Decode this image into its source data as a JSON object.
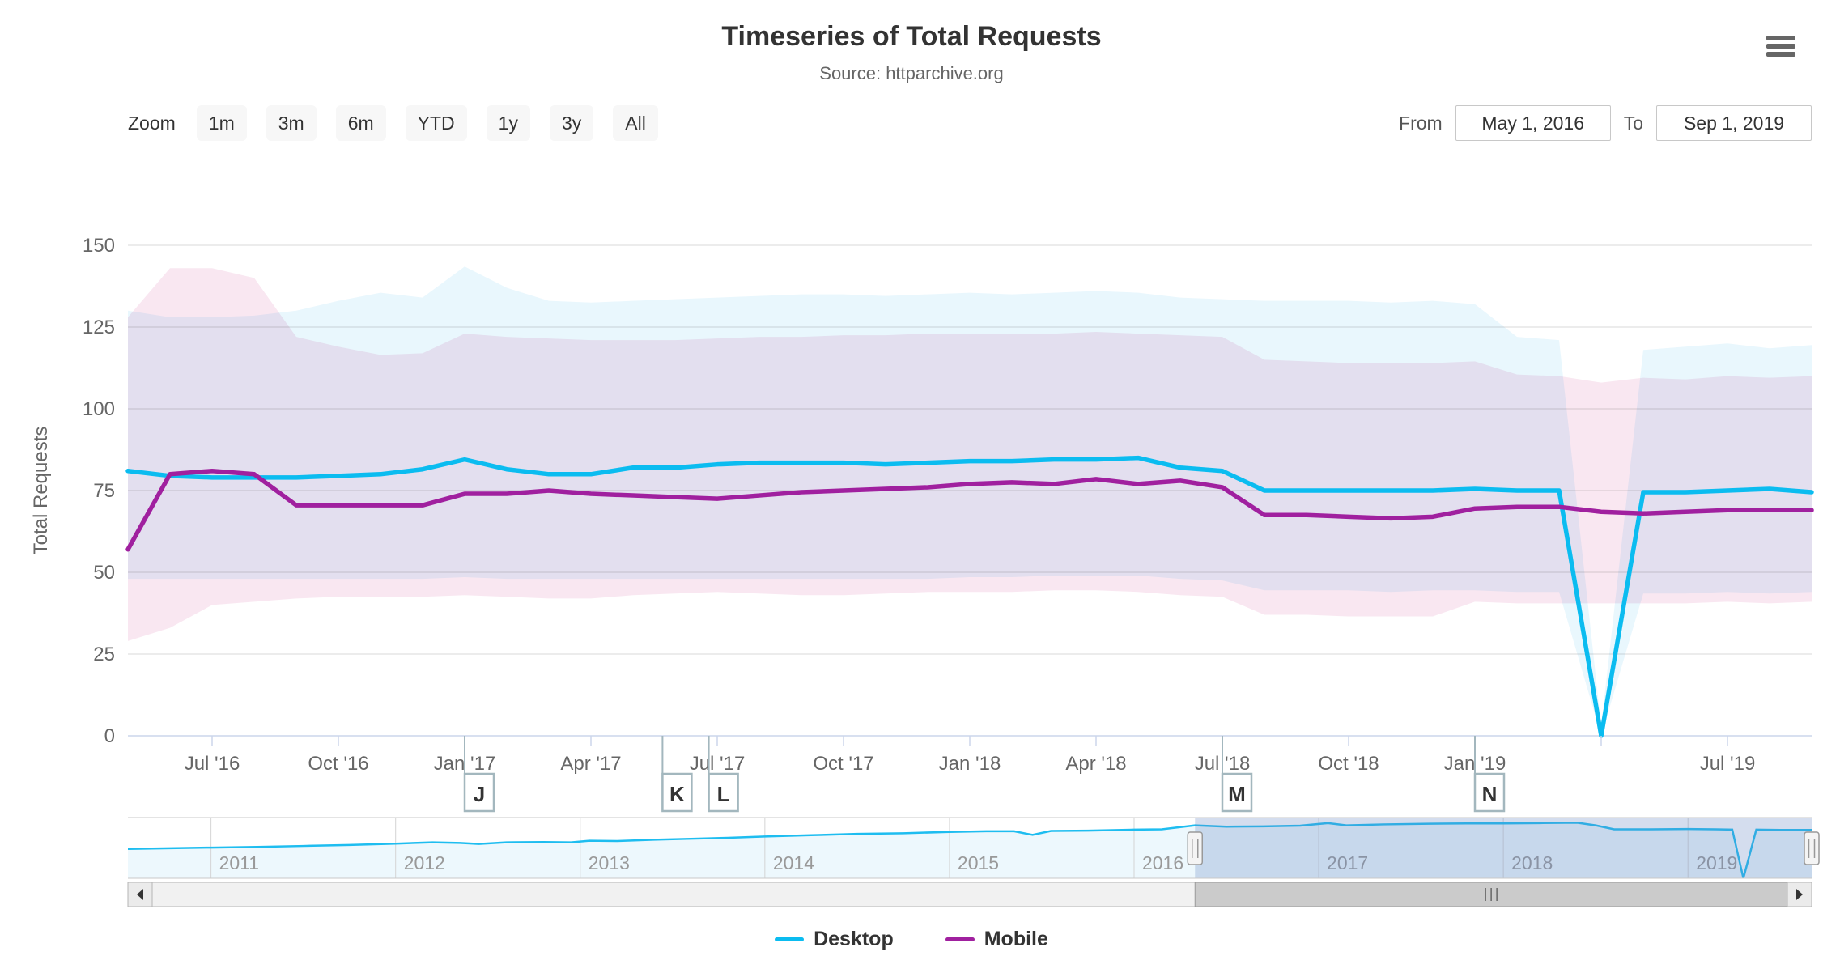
{
  "header": {
    "menu_icon": "hamburger-icon"
  },
  "toolbar": {
    "zoom_label": "Zoom",
    "buttons": [
      "1m",
      "3m",
      "6m",
      "YTD",
      "1y",
      "3y",
      "All"
    ],
    "from_label": "From",
    "from_value": "May 1, 2016",
    "to_label": "To",
    "to_value": "Sep 1, 2019"
  },
  "chart_data": {
    "type": "line",
    "title": "Timeseries of Total Requests",
    "subtitle": "Source: httparchive.org",
    "ylabel": "Total Requests",
    "ylim": [
      0,
      150
    ],
    "yticks": [
      0,
      25,
      50,
      75,
      100,
      125,
      150
    ],
    "grid": "horizontal",
    "legend_position": "bottom",
    "months": [
      "2016-05",
      "2016-06",
      "2016-07",
      "2016-08",
      "2016-09",
      "2016-10",
      "2016-11",
      "2016-12",
      "2017-01",
      "2017-02",
      "2017-03",
      "2017-04",
      "2017-05",
      "2017-06",
      "2017-07",
      "2017-08",
      "2017-09",
      "2017-10",
      "2017-11",
      "2017-12",
      "2018-01",
      "2018-02",
      "2018-03",
      "2018-04",
      "2018-05",
      "2018-06",
      "2018-07",
      "2018-08",
      "2018-09",
      "2018-10",
      "2018-11",
      "2018-12",
      "2019-01",
      "2019-02",
      "2019-03",
      "2019-04",
      "2019-05",
      "2019-06",
      "2019-07",
      "2019-08",
      "2019-09"
    ],
    "xticks": [
      {
        "x": 2,
        "label": "Jul '16"
      },
      {
        "x": 5,
        "label": "Oct '16"
      },
      {
        "x": 8,
        "label": "Jan '17"
      },
      {
        "x": 11,
        "label": "Apr '17"
      },
      {
        "x": 14,
        "label": "Jul '17"
      },
      {
        "x": 17,
        "label": "Oct '17"
      },
      {
        "x": 20,
        "label": "Jan '18"
      },
      {
        "x": 23,
        "label": "Apr '18"
      },
      {
        "x": 26,
        "label": "Jul '18"
      },
      {
        "x": 29,
        "label": "Oct '18"
      },
      {
        "x": 32,
        "label": "Jan '19"
      },
      {
        "x": 35,
        "label": ""
      },
      {
        "x": 38,
        "label": "Jul '19"
      }
    ],
    "series": [
      {
        "name": "Desktop",
        "color": "#0bbcf0",
        "values": [
          81,
          79.5,
          79,
          79,
          79,
          79.5,
          80,
          81.5,
          84.5,
          81.5,
          80,
          80,
          82,
          82,
          83,
          83.5,
          83.5,
          83.5,
          83,
          83.5,
          84,
          84,
          84.5,
          84.5,
          85,
          82,
          81,
          75,
          75,
          75,
          75,
          75,
          75.5,
          75,
          75,
          0,
          74.5,
          74.5,
          75,
          75.5,
          74.5
        ]
      },
      {
        "name": "Mobile",
        "color": "#a0209f",
        "values": [
          57,
          80,
          81,
          80,
          70.5,
          70.5,
          70.5,
          70.5,
          74,
          74,
          75,
          74,
          73.5,
          73,
          72.5,
          73.5,
          74.5,
          75,
          75.5,
          76,
          77,
          77.5,
          77,
          78.5,
          77,
          78,
          76,
          67.5,
          67.5,
          67,
          66.5,
          67,
          69.5,
          70,
          70,
          68.5,
          68,
          68.5,
          69,
          69,
          69
        ]
      }
    ],
    "ranges": [
      {
        "name": "Desktop range",
        "fill": "#e9f7fd",
        "high": [
          130,
          128,
          128,
          128.5,
          130,
          133,
          135.5,
          134,
          143.5,
          137,
          133,
          132.5,
          133,
          133.5,
          134,
          134.5,
          135,
          135,
          134.5,
          135,
          135.5,
          135,
          135.5,
          136,
          135.5,
          134,
          133.5,
          133,
          133,
          133,
          132.5,
          133,
          132,
          122,
          121,
          3,
          118,
          119,
          120,
          118.5,
          119.5
        ],
        "low": [
          48,
          48,
          48,
          48,
          48,
          48,
          48,
          48,
          48.5,
          48,
          48,
          48,
          48,
          48,
          48,
          48,
          48,
          48,
          48,
          48,
          48.5,
          48.5,
          49,
          49,
          49,
          48,
          47.5,
          44.5,
          44.5,
          44.5,
          44,
          44.5,
          44.5,
          44,
          44,
          0,
          43.5,
          43.5,
          44,
          43.5,
          44
        ]
      },
      {
        "name": "Mobile range",
        "fill": "#f9e7f1",
        "high": [
          128,
          143,
          143,
          140,
          122,
          119,
          116.5,
          117,
          123,
          122,
          121.5,
          121,
          121,
          121,
          121.5,
          122,
          122,
          122.5,
          122.5,
          123,
          123,
          123,
          123,
          123.5,
          123,
          122.5,
          122,
          115,
          114.5,
          114,
          114,
          114,
          114.5,
          110.5,
          110,
          108,
          109.5,
          109,
          110,
          109.5,
          110
        ],
        "low": [
          29,
          33,
          40,
          41,
          42,
          42.5,
          42.5,
          42.5,
          43,
          42.5,
          42,
          42,
          43,
          43.5,
          44,
          43.5,
          43,
          43,
          43.5,
          44,
          44,
          44,
          44.5,
          44.5,
          44,
          43,
          42.5,
          37,
          37,
          36.5,
          36.5,
          36.5,
          41,
          40.5,
          40.5,
          40.5,
          40.5,
          40.5,
          41,
          40.5,
          41
        ]
      }
    ],
    "flags": [
      {
        "x": 8,
        "label": "J"
      },
      {
        "x": 12.7,
        "label": "K"
      },
      {
        "x": 13.8,
        "label": "L"
      },
      {
        "x": 26,
        "label": "M"
      },
      {
        "x": 32,
        "label": "N"
      }
    ]
  },
  "navigator": {
    "domain_start": 2010.55,
    "domain_end": 2019.67,
    "selected_start": 2016.33,
    "selected_end": 2019.67,
    "ymax": 88,
    "year_labels": [
      "2011",
      "2012",
      "2013",
      "2014",
      "2015",
      "2016",
      "2017",
      "2018",
      "2019"
    ],
    "points": [
      [
        2010.55,
        45
      ],
      [
        2011,
        47
      ],
      [
        2011.25,
        48
      ],
      [
        2011.5,
        49.5
      ],
      [
        2011.75,
        51
      ],
      [
        2012,
        53
      ],
      [
        2012.2,
        55
      ],
      [
        2012.35,
        54
      ],
      [
        2012.45,
        52.5
      ],
      [
        2012.6,
        55
      ],
      [
        2012.8,
        55.5
      ],
      [
        2012.95,
        55
      ],
      [
        2013.05,
        57.5
      ],
      [
        2013.2,
        57
      ],
      [
        2013.4,
        59
      ],
      [
        2013.6,
        60.5
      ],
      [
        2013.8,
        62
      ],
      [
        2014,
        64
      ],
      [
        2014.25,
        66
      ],
      [
        2014.5,
        68
      ],
      [
        2014.75,
        69
      ],
      [
        2015,
        71
      ],
      [
        2015.2,
        72
      ],
      [
        2015.35,
        72
      ],
      [
        2015.45,
        66.5
      ],
      [
        2015.55,
        72.5
      ],
      [
        2015.75,
        73
      ],
      [
        2016,
        74.5
      ],
      [
        2016.15,
        75
      ],
      [
        2016.33,
        81
      ],
      [
        2016.5,
        79
      ],
      [
        2016.7,
        79.5
      ],
      [
        2016.9,
        80.5
      ],
      [
        2017.05,
        84.5
      ],
      [
        2017.15,
        81
      ],
      [
        2017.35,
        82.5
      ],
      [
        2017.6,
        83.5
      ],
      [
        2017.8,
        84
      ],
      [
        2018,
        84
      ],
      [
        2018.2,
        84.5
      ],
      [
        2018.4,
        85
      ],
      [
        2018.5,
        81
      ],
      [
        2018.6,
        75
      ],
      [
        2018.8,
        75
      ],
      [
        2019,
        75.5
      ],
      [
        2019.15,
        75
      ],
      [
        2019.24,
        74.5
      ],
      [
        2019.3,
        0
      ],
      [
        2019.37,
        74.5
      ],
      [
        2019.5,
        74
      ],
      [
        2019.67,
        74
      ]
    ]
  },
  "colors": {
    "axis_line": "#ccd6eb",
    "gridline": "#e6e6e6",
    "axis_text": "#666666",
    "flag_border": "#a3b7be",
    "nav_mask": "rgba(102,133,194,0.28)",
    "nav_area": "#edf8fd",
    "nav_line": "#1ebdf0",
    "nav_grid": "#d4d4d4",
    "scroll_track": "#f1f1f1",
    "scroll_thumb": "#cbcbcb",
    "scroll_border": "#b5b5b5",
    "handle_fill": "#f4f4f4",
    "handle_stroke": "#999999"
  }
}
